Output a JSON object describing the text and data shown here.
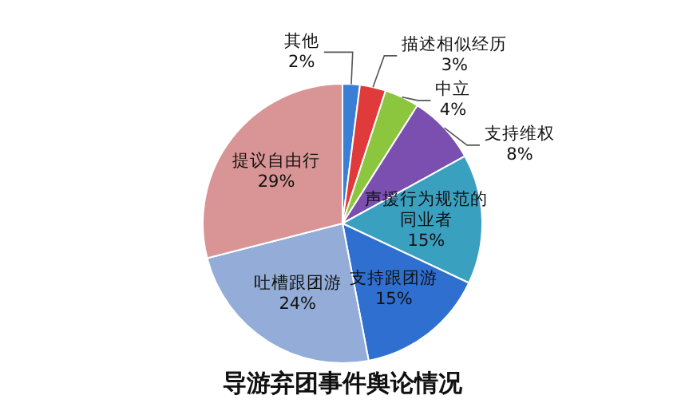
{
  "chart_data": {
    "type": "pie",
    "title": "导游弃团事件舆论情况",
    "categories": [
      "其他",
      "描述相似经历",
      "中立",
      "支持维权",
      "声援行为规范的同业者",
      "支持跟团游",
      "吐槽跟团游",
      "提议自由行"
    ],
    "values": [
      2,
      3,
      4,
      8,
      15,
      15,
      24,
      29
    ],
    "value_labels": [
      "2%",
      "3%",
      "4%",
      "8%",
      "15%",
      "15%",
      "24%",
      "29%"
    ],
    "colors": [
      "#3a7fd5",
      "#e03a3a",
      "#8cc63f",
      "#7a4fb0",
      "#3aa0c0",
      "#2f6fd0",
      "#93acd8",
      "#d99595"
    ],
    "legend": false
  }
}
